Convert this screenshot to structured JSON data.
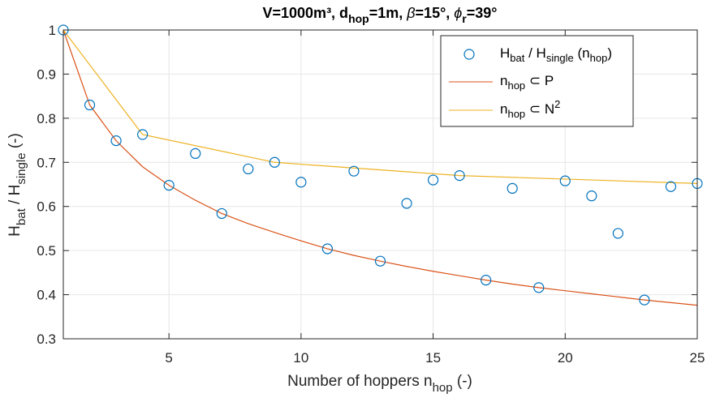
{
  "chart_data": {
    "type": "scatter",
    "title": {
      "plain": "V=1000m³, d",
      "sub1": "hop",
      "mid": "=1m, ",
      "beta": "β",
      "mid2": "=15°, ",
      "phi": "ϕ",
      "sub2": "r",
      "end": "=39°"
    },
    "xlabel": {
      "main": "Number of hoppers n",
      "sub": "hop",
      "end": " (-)"
    },
    "ylabel": {
      "h": "H",
      "sub1": "bat",
      "slash": " / H",
      "sub2": "single",
      "end": " (-)"
    },
    "xlim": [
      1,
      25
    ],
    "ylim": [
      0.3,
      1
    ],
    "xticks": [
      5,
      10,
      15,
      20,
      25
    ],
    "yticks": [
      0.3,
      0.4,
      0.5,
      0.6,
      0.7,
      0.8,
      0.9,
      1
    ],
    "grid": true,
    "legend_position": "top-right",
    "legend": [
      {
        "t1": "H",
        "s1": "bat",
        "t2": " / H",
        "s2": "single",
        "t3": " (n",
        "s3": "hop",
        "t4": ")"
      },
      {
        "t1": "n",
        "s1": "hop",
        "t2": " ⊂ P"
      },
      {
        "t1": "n",
        "s1": "hop",
        "t2": " ⊂ N",
        "sup": "2"
      }
    ],
    "series": [
      {
        "kind": "scatter",
        "color": "#0072bd",
        "x": [
          1,
          2,
          3,
          4,
          5,
          6,
          7,
          8,
          9,
          10,
          11,
          12,
          13,
          14,
          15,
          16,
          17,
          18,
          19,
          20,
          21,
          22,
          23,
          24,
          25
        ],
        "y": [
          1.0,
          0.83,
          0.749,
          0.763,
          0.648,
          0.72,
          0.584,
          0.685,
          0.7,
          0.655,
          0.504,
          0.68,
          0.476,
          0.607,
          0.66,
          0.67,
          0.433,
          0.641,
          0.416,
          0.658,
          0.624,
          0.539,
          0.388,
          0.645,
          0.652
        ]
      },
      {
        "kind": "line",
        "color": "#d95319",
        "x": [
          1,
          2,
          3,
          4,
          5,
          6,
          7,
          8,
          9,
          10,
          11,
          12,
          13,
          14,
          15,
          16,
          17,
          18,
          19,
          20,
          21,
          22,
          23,
          24,
          25
        ],
        "y": [
          1.0,
          0.83,
          0.749,
          0.69,
          0.648,
          0.614,
          0.584,
          0.561,
          0.541,
          0.522,
          0.504,
          0.489,
          0.476,
          0.464,
          0.453,
          0.443,
          0.433,
          0.424,
          0.416,
          0.409,
          0.402,
          0.395,
          0.388,
          0.382,
          0.376
        ]
      },
      {
        "kind": "line",
        "color": "#edb120",
        "x": [
          1,
          4,
          9,
          16,
          25
        ],
        "y": [
          1.0,
          0.763,
          0.7,
          0.67,
          0.652
        ]
      }
    ]
  }
}
